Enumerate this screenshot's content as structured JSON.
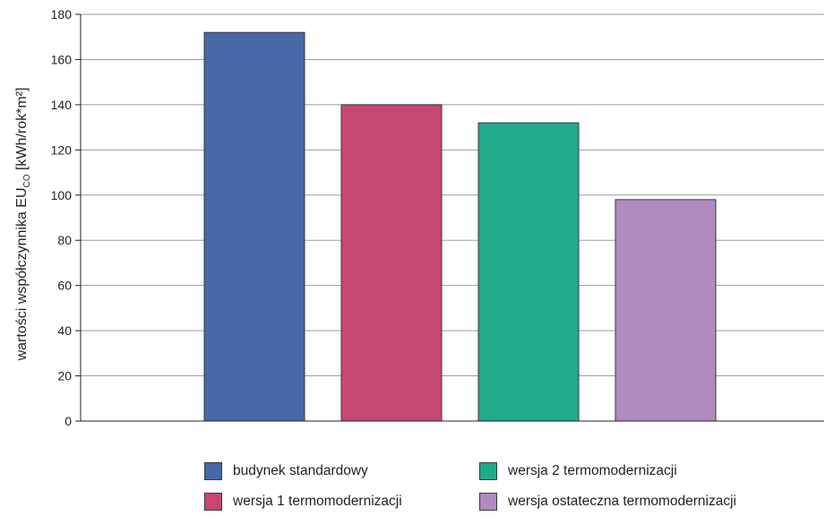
{
  "chart_data": {
    "type": "bar",
    "categories": [
      "budynek standardowy",
      "wersja 1 termomodernizacji",
      "wersja 2 termomodernizacji",
      "wersja ostateczna termomodernizacji"
    ],
    "values": [
      172,
      140,
      132,
      98
    ],
    "colors": [
      "#4668a6",
      "#c64872",
      "#21a98b",
      "#b18abf"
    ],
    "ylabel": {
      "main": "wartości współczynnika EU",
      "sub": "CO",
      "unit": " [kWh/rok*m²]"
    },
    "xlabel": "",
    "ylim": [
      0,
      180
    ],
    "yticks": [
      "0",
      "20",
      "40",
      "60",
      "80",
      "100",
      "120",
      "140",
      "160",
      "180"
    ],
    "grid": true,
    "legend_position": "bottom"
  }
}
